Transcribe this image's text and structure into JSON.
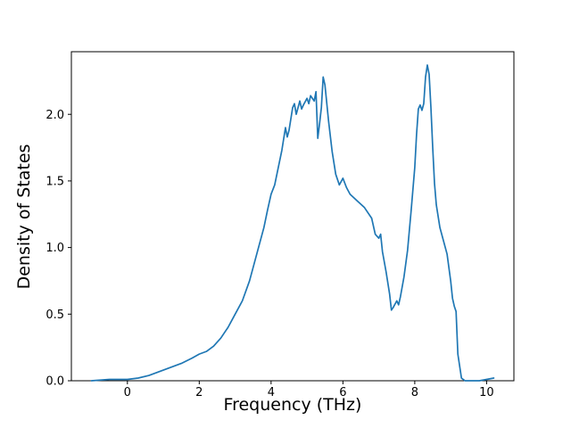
{
  "figure": {
    "background": "#ffffff"
  },
  "chart_data": {
    "type": "line",
    "title": "",
    "xlabel": "Frequency (THz)",
    "ylabel": "Density of States",
    "line_color": "#1f77b4",
    "line_width": 1.7,
    "grid": false,
    "legend": "none",
    "xlim": [
      -1.56,
      10.76
    ],
    "ylim": [
      0,
      2.47
    ],
    "x_ticks": [
      0,
      2,
      4,
      6,
      8,
      10
    ],
    "x_tick_labels": [
      "0",
      "2",
      "4",
      "6",
      "8",
      "10"
    ],
    "y_ticks": [
      0.0,
      0.5,
      1.0,
      1.5,
      2.0
    ],
    "y_tick_labels": [
      "0.0",
      "0.5",
      "1.0",
      "1.5",
      "2.0"
    ],
    "x": [
      -1.0,
      -0.5,
      0.0,
      0.3,
      0.6,
      0.9,
      1.2,
      1.5,
      1.8,
      2.0,
      2.2,
      2.4,
      2.6,
      2.8,
      3.0,
      3.2,
      3.4,
      3.6,
      3.8,
      3.9,
      4.0,
      4.1,
      4.2,
      4.3,
      4.4,
      4.45,
      4.5,
      4.6,
      4.65,
      4.7,
      4.8,
      4.85,
      4.9,
      5.0,
      5.05,
      5.1,
      5.2,
      5.25,
      5.3,
      5.35,
      5.4,
      5.45,
      5.5,
      5.6,
      5.7,
      5.8,
      5.9,
      6.0,
      6.1,
      6.2,
      6.4,
      6.6,
      6.8,
      6.9,
      7.0,
      7.05,
      7.1,
      7.2,
      7.3,
      7.35,
      7.4,
      7.5,
      7.55,
      7.6,
      7.7,
      7.8,
      7.9,
      8.0,
      8.05,
      8.1,
      8.15,
      8.2,
      8.25,
      8.3,
      8.35,
      8.4,
      8.45,
      8.5,
      8.55,
      8.6,
      8.7,
      8.8,
      8.9,
      9.0,
      9.05,
      9.1,
      9.15,
      9.2,
      9.3,
      9.4,
      9.6,
      9.8,
      10.0,
      10.2
    ],
    "y": [
      0.0,
      0.01,
      0.01,
      0.02,
      0.04,
      0.07,
      0.1,
      0.13,
      0.17,
      0.2,
      0.22,
      0.26,
      0.32,
      0.4,
      0.5,
      0.6,
      0.75,
      0.95,
      1.15,
      1.28,
      1.4,
      1.47,
      1.6,
      1.73,
      1.9,
      1.83,
      1.88,
      2.05,
      2.08,
      2.0,
      2.1,
      2.04,
      2.07,
      2.12,
      2.08,
      2.14,
      2.1,
      2.17,
      1.82,
      1.93,
      2.05,
      2.28,
      2.22,
      1.95,
      1.72,
      1.55,
      1.47,
      1.52,
      1.45,
      1.4,
      1.35,
      1.3,
      1.22,
      1.1,
      1.07,
      1.1,
      0.97,
      0.82,
      0.65,
      0.53,
      0.55,
      0.6,
      0.57,
      0.63,
      0.78,
      0.98,
      1.28,
      1.6,
      1.85,
      2.04,
      2.07,
      2.03,
      2.08,
      2.28,
      2.37,
      2.3,
      2.05,
      1.75,
      1.48,
      1.32,
      1.15,
      1.05,
      0.95,
      0.75,
      0.62,
      0.56,
      0.52,
      0.2,
      0.02,
      0.0,
      0.0,
      0.0,
      0.01,
      0.02
    ]
  }
}
